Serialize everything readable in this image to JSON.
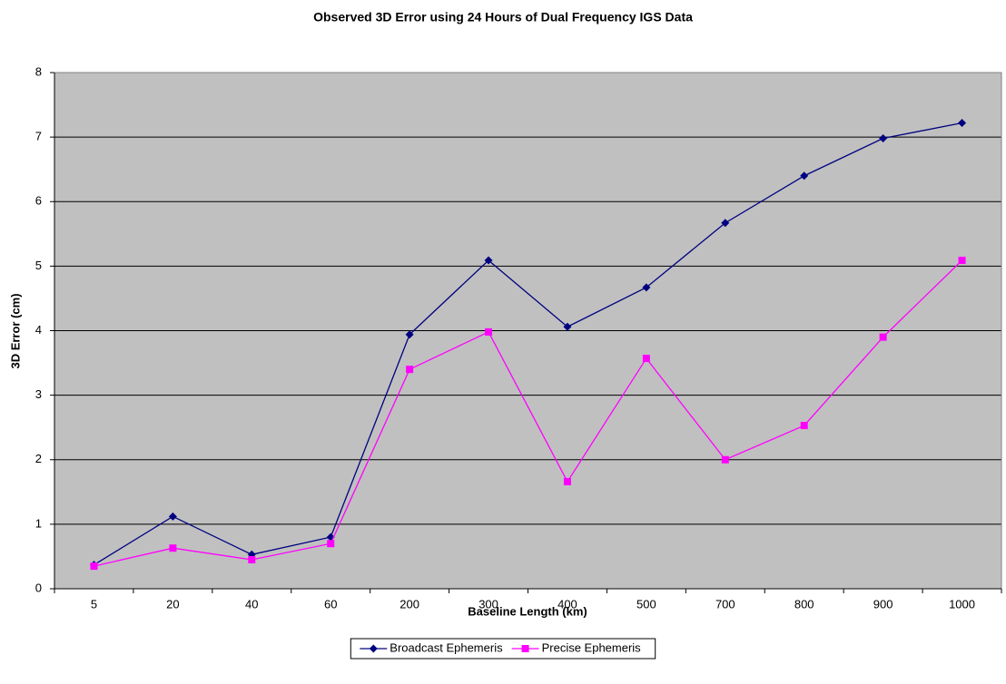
{
  "chart_data": {
    "type": "line",
    "title": "Observed 3D Error using 24 Hours of Dual Frequency IGS Data",
    "x_label": "Baseline Length (km)",
    "y_label": "3D Error (cm)",
    "categories": [
      "5",
      "20",
      "40",
      "60",
      "200",
      "300",
      "400",
      "500",
      "700",
      "800",
      "900",
      "1000"
    ],
    "series": [
      {
        "name": "Broadcast Ephemeris",
        "color": "#000080",
        "marker": "diamond",
        "values": [
          0.37,
          1.12,
          0.53,
          0.8,
          3.94,
          5.09,
          4.06,
          4.67,
          5.67,
          6.4,
          6.98,
          7.22
        ]
      },
      {
        "name": "Precise Ephemeris",
        "color": "#ff00ff",
        "marker": "square",
        "values": [
          0.35,
          0.63,
          0.45,
          0.7,
          3.4,
          3.98,
          1.66,
          3.57,
          2.0,
          2.53,
          3.9,
          5.09
        ]
      }
    ],
    "ylim": [
      0,
      8
    ],
    "yticks": [
      0,
      1,
      2,
      3,
      4,
      5,
      6,
      7,
      8
    ],
    "grid": true,
    "plot_background": "#c0c0c0",
    "legend": "bottom"
  }
}
